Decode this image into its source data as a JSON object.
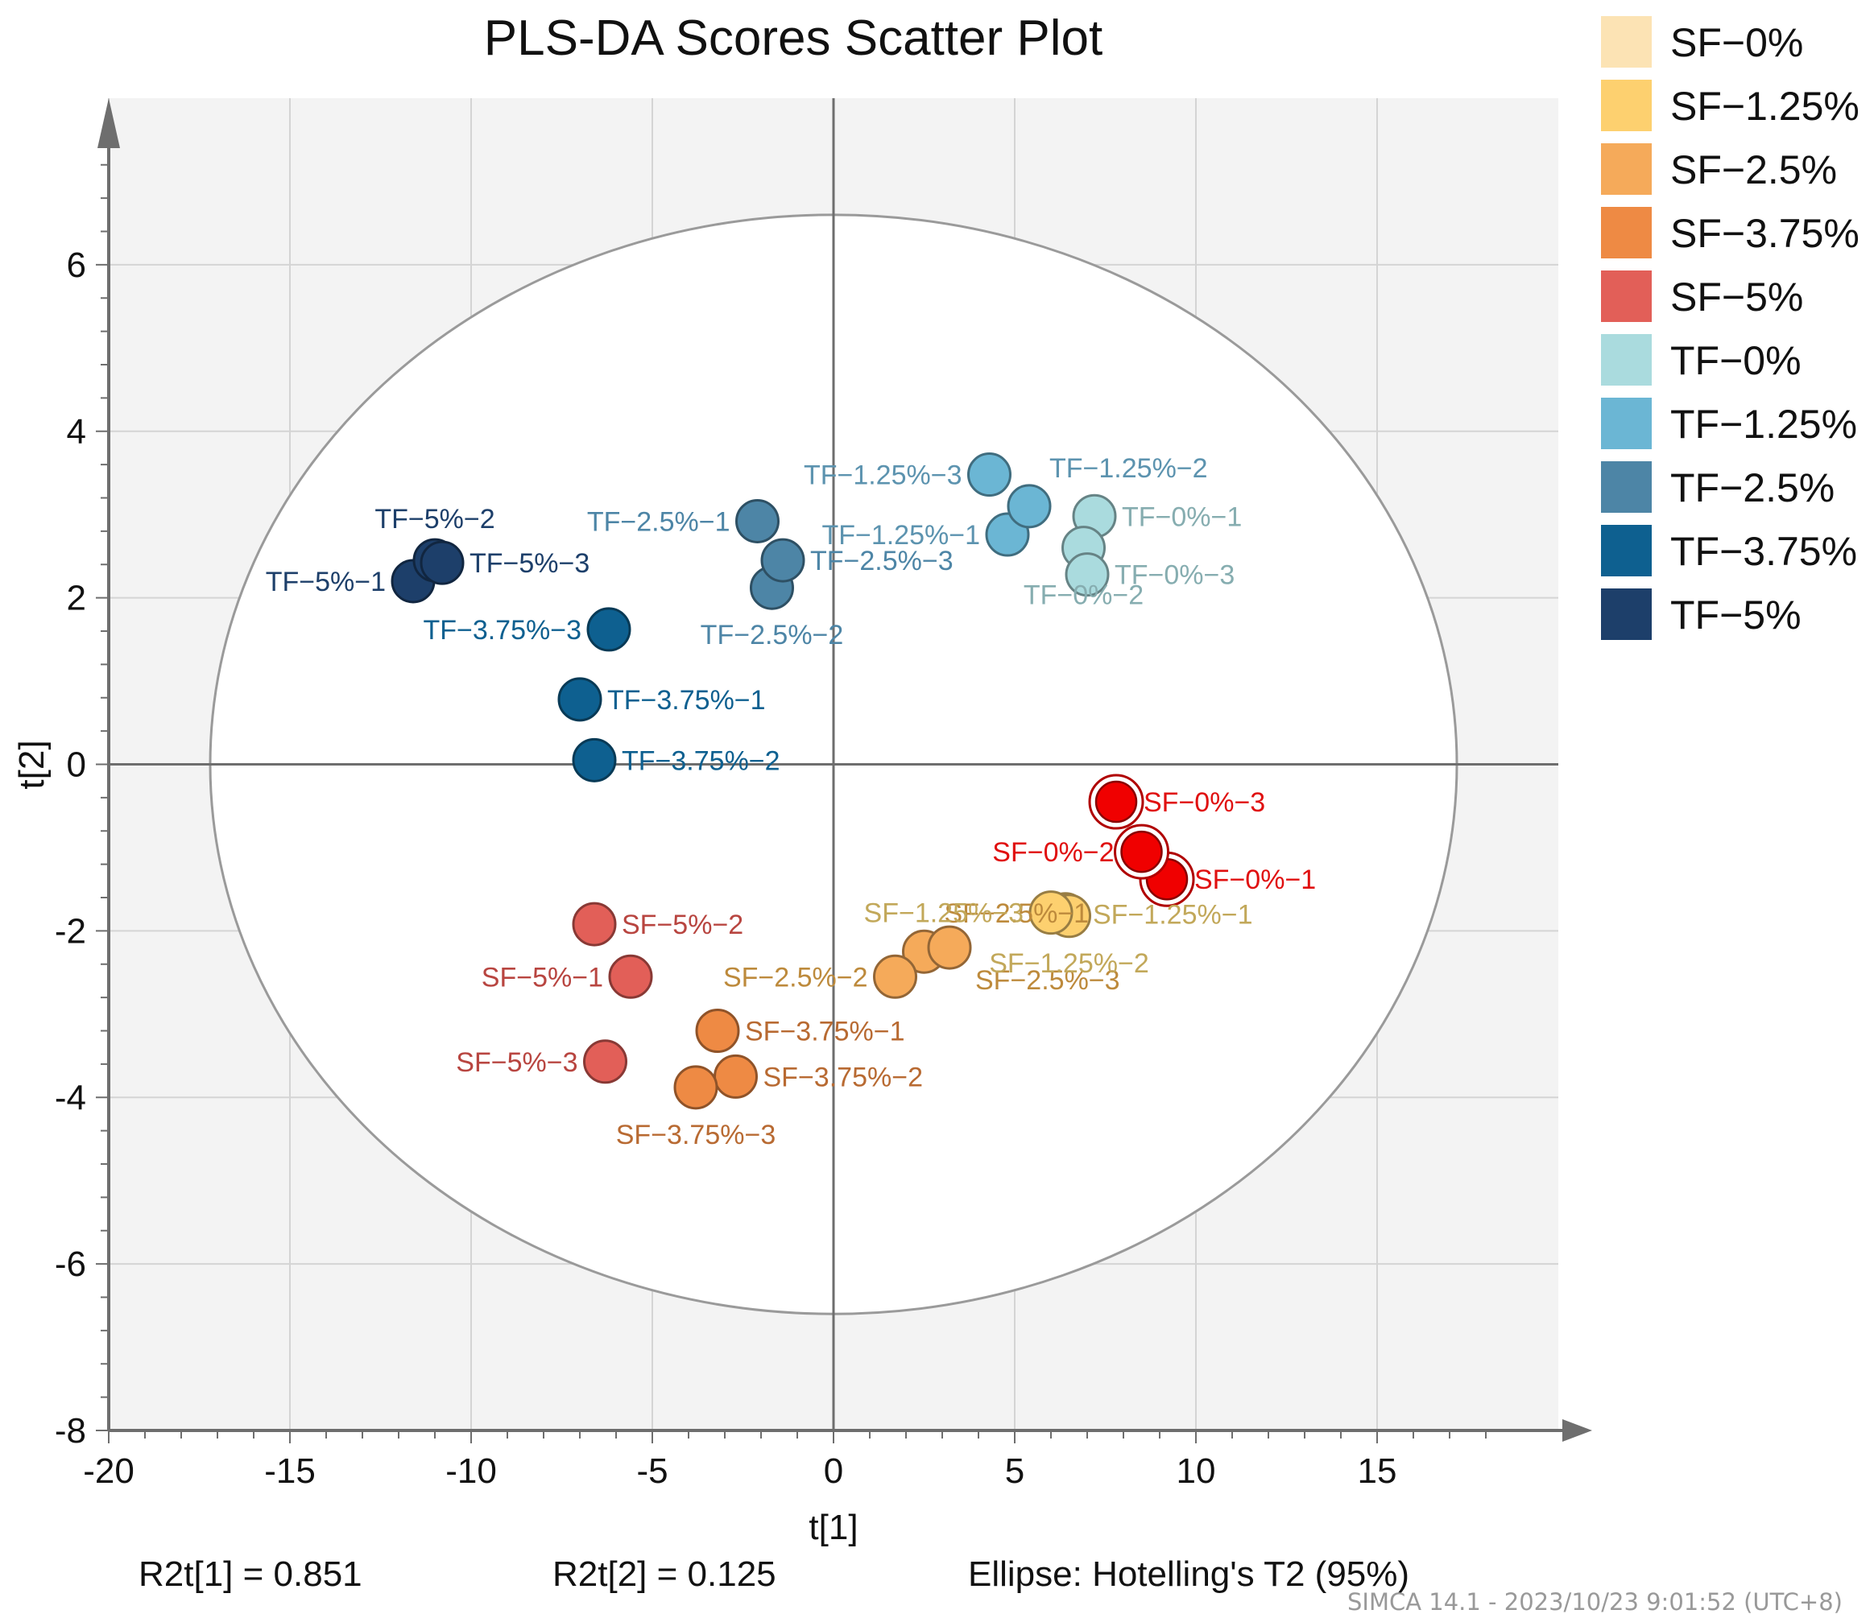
{
  "chart_data": {
    "type": "scatter",
    "title": "PLS-DA Scores Scatter Plot",
    "xlabel": "t[1]",
    "ylabel": "t[2]",
    "xlim": [
      -20,
      20
    ],
    "ylim": [
      -8,
      8
    ],
    "x_ticks": [
      "-20",
      "-15",
      "-10",
      "-5",
      "0",
      "5",
      "10",
      "15"
    ],
    "y_ticks": [
      "-8",
      "-6",
      "-4",
      "-2",
      "0",
      "2",
      "4",
      "6"
    ],
    "grid": true,
    "ellipse": {
      "label": "Ellipse: Hotelling's T2 (95%)",
      "a": 17.2,
      "b": 6.6
    },
    "r2t1": "R2t[1] = 0.851",
    "r2t2": "R2t[2] = 0.125",
    "software": "SIMCA 14.1 - 2023/10/23 9:01:52 (UTC+8)",
    "legend_position": "right",
    "legend": [
      {
        "name": "SF−0%",
        "color": "#FCE3B4"
      },
      {
        "name": "SF−1.25%",
        "color": "#FDD06F"
      },
      {
        "name": "SF−2.5%",
        "color": "#F5AA5A"
      },
      {
        "name": "SF−3.75%",
        "color": "#EE8A44"
      },
      {
        "name": "SF−5%",
        "color": "#E25F58"
      },
      {
        "name": "TF−0%",
        "color": "#AADBDE"
      },
      {
        "name": "TF−1.25%",
        "color": "#6BB6D4"
      },
      {
        "name": "TF−2.5%",
        "color": "#4D85A6"
      },
      {
        "name": "TF−3.75%",
        "color": "#0E6090"
      },
      {
        "name": "TF−5%",
        "color": "#1D3F6A"
      }
    ],
    "points": [
      {
        "label": "TF−5%−1",
        "x": -11.6,
        "y": 2.2,
        "color": "#1D3F6A",
        "text_color": "#1D3F6A",
        "label_pos": "left"
      },
      {
        "label": "TF−5%−2",
        "x": -11.0,
        "y": 2.45,
        "color": "#1D3F6A",
        "text_color": "#1D3F6A",
        "label_pos": "above"
      },
      {
        "label": "TF−5%−3",
        "x": -10.8,
        "y": 2.42,
        "color": "#1D3F6A",
        "text_color": "#1D3F6A",
        "label_pos": "right"
      },
      {
        "label": "TF−3.75%−1",
        "x": -7.0,
        "y": 0.78,
        "color": "#0E6090",
        "text_color": "#0E6090",
        "label_pos": "right"
      },
      {
        "label": "TF−3.75%−2",
        "x": -6.6,
        "y": 0.05,
        "color": "#0E6090",
        "text_color": "#0E6090",
        "label_pos": "right"
      },
      {
        "label": "TF−3.75%−3",
        "x": -6.2,
        "y": 1.62,
        "color": "#0E6090",
        "text_color": "#0E6090",
        "label_pos": "left"
      },
      {
        "label": "TF−2.5%−1",
        "x": -2.1,
        "y": 2.92,
        "color": "#4D85A6",
        "text_color": "#4D85A6",
        "label_pos": "left"
      },
      {
        "label": "TF−2.5%−2",
        "x": -1.7,
        "y": 2.12,
        "color": "#4D85A6",
        "text_color": "#4D85A6",
        "label_pos": "below"
      },
      {
        "label": "TF−2.5%−3",
        "x": -1.4,
        "y": 2.45,
        "color": "#4D85A6",
        "text_color": "#4D85A6",
        "label_pos": "right"
      },
      {
        "label": "TF−1.25%−1",
        "x": 4.8,
        "y": 2.76,
        "color": "#6BB6D4",
        "text_color": "#5C93AF",
        "label_pos": "left"
      },
      {
        "label": "TF−1.25%−2",
        "x": 5.4,
        "y": 3.1,
        "color": "#6BB6D4",
        "text_color": "#5C93AF",
        "label_pos": "above-right"
      },
      {
        "label": "TF−1.25%−3",
        "x": 4.3,
        "y": 3.48,
        "color": "#6BB6D4",
        "text_color": "#5C93AF",
        "label_pos": "left"
      },
      {
        "label": "TF−0%−1",
        "x": 7.2,
        "y": 2.98,
        "color": "#AADBDE",
        "text_color": "#86ADB0",
        "label_pos": "right"
      },
      {
        "label": "TF−0%−2",
        "x": 6.9,
        "y": 2.6,
        "color": "#AADBDE",
        "text_color": "#86ADB0",
        "label_pos": "below"
      },
      {
        "label": "TF−0%−3",
        "x": 7.0,
        "y": 2.28,
        "color": "#AADBDE",
        "text_color": "#86ADB0",
        "label_pos": "right"
      },
      {
        "label": "SF−5%−1",
        "x": -5.6,
        "y": -2.55,
        "color": "#E25F58",
        "text_color": "#B84540",
        "label_pos": "left"
      },
      {
        "label": "SF−5%−2",
        "x": -6.6,
        "y": -1.92,
        "color": "#E25F58",
        "text_color": "#B84540",
        "label_pos": "right"
      },
      {
        "label": "SF−5%−3",
        "x": -6.3,
        "y": -3.57,
        "color": "#E25F58",
        "text_color": "#B84540",
        "label_pos": "left"
      },
      {
        "label": "SF−3.75%−1",
        "x": -3.2,
        "y": -3.2,
        "color": "#EE8A44",
        "text_color": "#B86A32",
        "label_pos": "right"
      },
      {
        "label": "SF−3.75%−2",
        "x": -2.7,
        "y": -3.75,
        "color": "#EE8A44",
        "text_color": "#B86A32",
        "label_pos": "right"
      },
      {
        "label": "SF−3.75%−3",
        "x": -3.8,
        "y": -3.88,
        "color": "#EE8A44",
        "text_color": "#B86A32",
        "label_pos": "below"
      },
      {
        "label": "SF−2.5%−1",
        "x": 2.5,
        "y": -2.25,
        "color": "#F5AA5A",
        "text_color": "#BD8A3C",
        "label_pos": "above-right"
      },
      {
        "label": "SF−2.5%−2",
        "x": 1.7,
        "y": -2.55,
        "color": "#F5AA5A",
        "text_color": "#BD8A3C",
        "label_pos": "left"
      },
      {
        "label": "SF−2.5%−3",
        "x": 3.2,
        "y": -2.2,
        "color": "#F5AA5A",
        "text_color": "#BD8A3C",
        "label_pos": "below-right"
      },
      {
        "label": "SF−1.25%−1",
        "x": 6.4,
        "y": -1.8,
        "color": "#FDD06F",
        "text_color": "#C2A85A",
        "label_pos": "right"
      },
      {
        "label": "SF−1.25%−2",
        "x": 6.5,
        "y": -1.82,
        "color": "#FDD06F",
        "text_color": "#C2A85A",
        "label_pos": "below"
      },
      {
        "label": "SF−1.25%−3",
        "x": 6.0,
        "y": -1.78,
        "color": "#FDD06F",
        "text_color": "#C2A85A",
        "label_pos": "left"
      },
      {
        "label": "SF−0%−1",
        "x": 9.2,
        "y": -1.38,
        "color": "#F00000",
        "text_color": "#E01010",
        "label_pos": "right",
        "highlight": true
      },
      {
        "label": "SF−0%−2",
        "x": 8.5,
        "y": -1.05,
        "color": "#F00000",
        "text_color": "#E01010",
        "label_pos": "left",
        "highlight": true
      },
      {
        "label": "SF−0%−3",
        "x": 7.8,
        "y": -0.45,
        "color": "#F00000",
        "text_color": "#E01010",
        "label_pos": "right",
        "highlight": true
      }
    ]
  }
}
